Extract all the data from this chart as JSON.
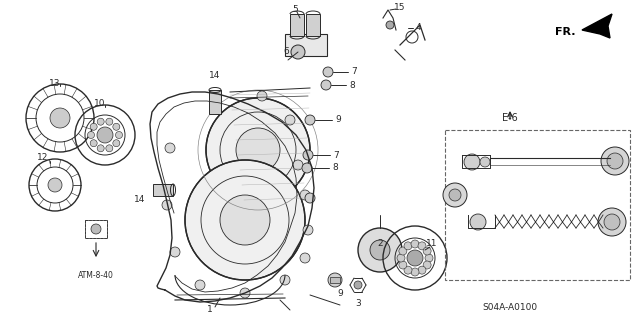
{
  "bg_color": "#ffffff",
  "line_color": "#2a2a2a",
  "title": "S04A-A0100",
  "fr_label": "FR.",
  "e6_label": "E-6",
  "atm_label": "ATM-8-40",
  "figw": 6.4,
  "figh": 3.19,
  "dpi": 100
}
